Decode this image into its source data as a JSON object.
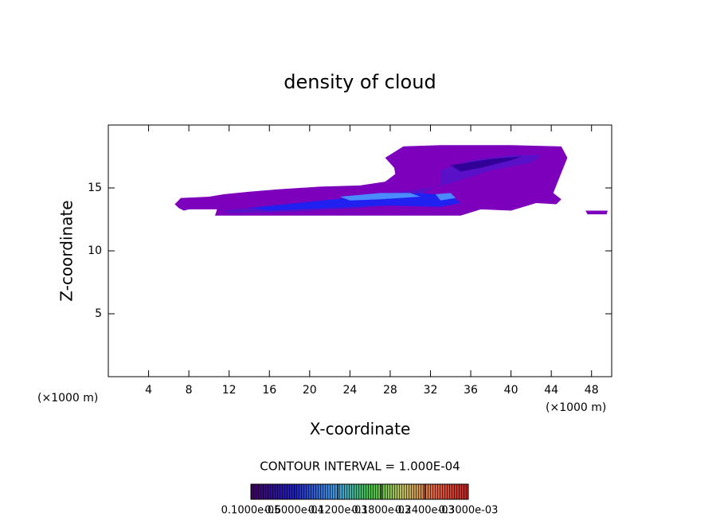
{
  "chart_data": {
    "type": "contour",
    "title": "density of cloud",
    "x_label": "X-coordinate",
    "y_label": "Z-coordinate",
    "x_unit_left": "(×1000 m)",
    "x_unit_right": "(×1000 m)",
    "xlim": [
      0,
      50
    ],
    "ylim": [
      0,
      20
    ],
    "xticks": [
      4,
      8,
      12,
      16,
      20,
      24,
      28,
      32,
      36,
      40,
      44,
      48
    ],
    "yticks": [
      5,
      10,
      15
    ],
    "contour_interval_text": "CONTOUR INTERVAL = 1.000E-04",
    "colorbar": {
      "levels": [
        1e-06,
        6e-05,
        0.00012,
        0.00018,
        0.00024,
        0.0003
      ],
      "labels": [
        "0.1000e-05",
        "0.6000e-04",
        "0.1200e-03",
        "0.1800e-03",
        "0.2400e-03",
        "0.3000e-03"
      ]
    },
    "regions": [
      {
        "level": 1e-06,
        "color": "#7d00bd",
        "points": [
          [
            6.6,
            13.7
          ],
          [
            7.2,
            14.2
          ],
          [
            10,
            14.3
          ],
          [
            11.5,
            14.5
          ],
          [
            14,
            14.7
          ],
          [
            17,
            14.9
          ],
          [
            21,
            15.1
          ],
          [
            25,
            15.2
          ],
          [
            27.5,
            15.5
          ],
          [
            28.5,
            16.1
          ],
          [
            28.4,
            16.6
          ],
          [
            27.5,
            17.4
          ],
          [
            29.3,
            18.3
          ],
          [
            33,
            18.4
          ],
          [
            40,
            18.4
          ],
          [
            45,
            18.3
          ],
          [
            45.6,
            17.4
          ],
          [
            45,
            16.2
          ],
          [
            44.2,
            14.6
          ],
          [
            45,
            14.1
          ],
          [
            44.5,
            13.7
          ],
          [
            42.5,
            13.8
          ],
          [
            40,
            13.2
          ],
          [
            37,
            13.3
          ],
          [
            35,
            12.8
          ],
          [
            30,
            12.8
          ],
          [
            20,
            12.8
          ],
          [
            10.6,
            12.8
          ],
          [
            10.8,
            13.3
          ],
          [
            8,
            13.3
          ],
          [
            7.5,
            13.2
          ],
          [
            7,
            13.4
          ]
        ]
      },
      {
        "level": 1e-06,
        "color": "#7d00bd",
        "points": [
          [
            47.6,
            12.9
          ],
          [
            49.5,
            12.9
          ],
          [
            49.6,
            13.2
          ],
          [
            47.4,
            13.2
          ]
        ]
      },
      {
        "level": 6e-05,
        "color": "#5a10c8",
        "points": [
          [
            11.5,
            13.2
          ],
          [
            16,
            13.6
          ],
          [
            22,
            14
          ],
          [
            28,
            14.6
          ],
          [
            32,
            15
          ],
          [
            34.5,
            15.5
          ],
          [
            38,
            16.4
          ],
          [
            42,
            17
          ],
          [
            43,
            17.6
          ],
          [
            40,
            17.6
          ],
          [
            36,
            17.2
          ],
          [
            33,
            16.4
          ],
          [
            33,
            15.3
          ],
          [
            30,
            14.1
          ],
          [
            25,
            13.4
          ],
          [
            18,
            13.1
          ],
          [
            12,
            13
          ]
        ]
      },
      {
        "level": 0.00012,
        "color": "#2020f0",
        "points": [
          [
            14,
            13.4
          ],
          [
            20,
            13.9
          ],
          [
            26,
            14.4
          ],
          [
            31,
            14.6
          ],
          [
            34,
            14.4
          ],
          [
            35,
            13.8
          ],
          [
            33,
            13.5
          ],
          [
            28,
            13.6
          ],
          [
            22,
            13.4
          ],
          [
            16,
            13.2
          ]
        ]
      },
      {
        "level": 0.00012,
        "color": "#300098",
        "points": [
          [
            34,
            16.8
          ],
          [
            38,
            17.3
          ],
          [
            41,
            17.5
          ],
          [
            40,
            17.2
          ],
          [
            37,
            16.6
          ],
          [
            35,
            16.3
          ]
        ]
      },
      {
        "level": 0.00018,
        "color": "#4a8cff",
        "points": [
          [
            23,
            14.3
          ],
          [
            27,
            14.6
          ],
          [
            30,
            14.6
          ],
          [
            31,
            14.3
          ],
          [
            27,
            14.1
          ],
          [
            24,
            14.0
          ]
        ]
      },
      {
        "level": 0.00018,
        "color": "#4a8cff",
        "points": [
          [
            32.5,
            14.5
          ],
          [
            34,
            14.6
          ],
          [
            34.5,
            14.2
          ],
          [
            33,
            14.0
          ]
        ]
      }
    ]
  }
}
